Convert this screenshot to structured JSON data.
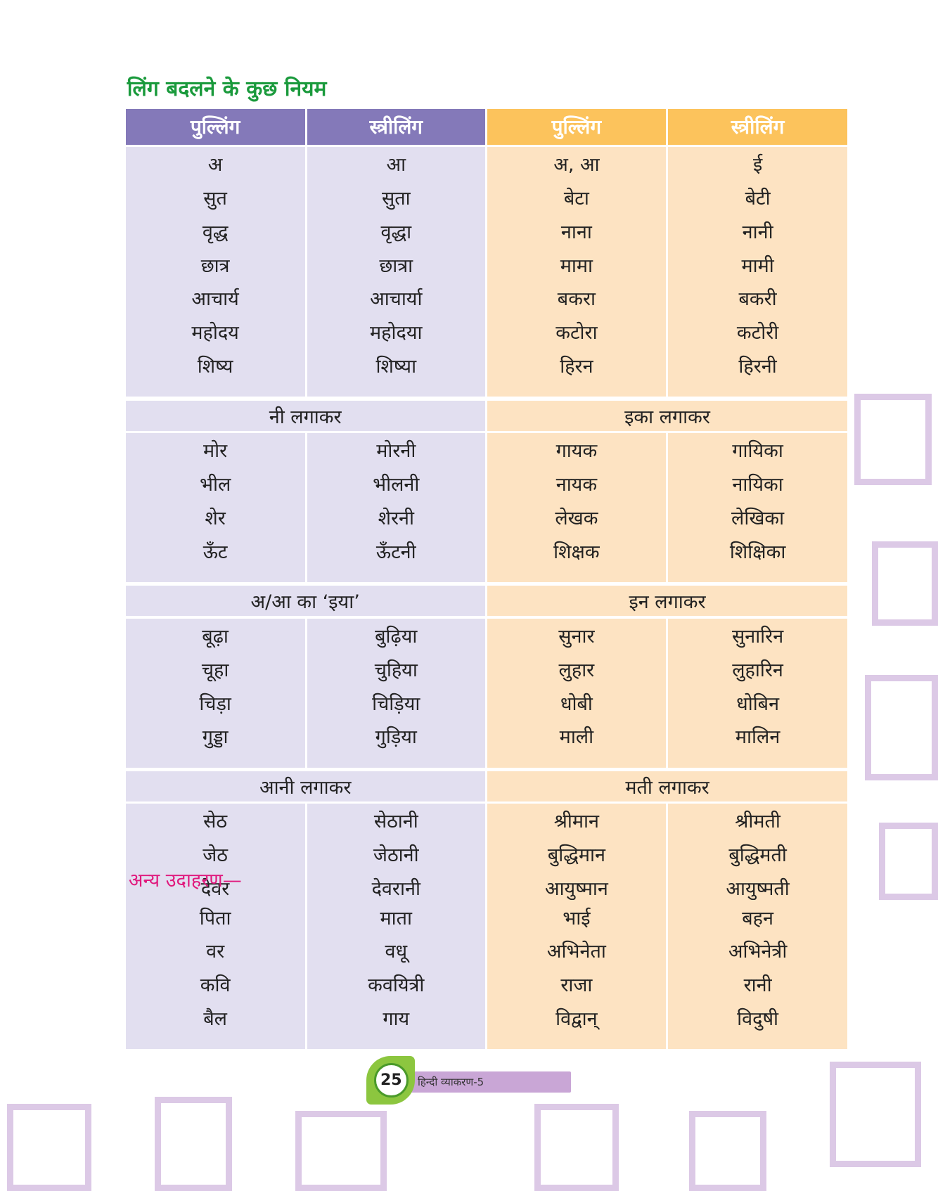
{
  "title": "लिंग बदलने के कुछ नियम",
  "headers": [
    "पुल्लिंग",
    "स्त्रीलिंग",
    "पुल्लिंग",
    "स्त्रीलिंग"
  ],
  "sections": [
    {
      "rows": [
        [
          "अ",
          "आ",
          "अ, आ",
          "ई"
        ],
        [
          "सुत",
          "सुता",
          "बेटा",
          "बेटी"
        ],
        [
          "वृद्ध",
          "वृद्धा",
          "नाना",
          "नानी"
        ],
        [
          "छात्र",
          "छात्रा",
          "मामा",
          "मामी"
        ],
        [
          "आचार्य",
          "आचार्या",
          "बकरा",
          "बकरी"
        ],
        [
          "महोदय",
          "महोदया",
          "कटोरा",
          "कटोरी"
        ],
        [
          "शिष्य",
          "शिष्या",
          "हिरन",
          "हिरनी"
        ]
      ]
    },
    {
      "left_title": "नी लगाकर",
      "right_title": "इका लगाकर",
      "rows": [
        [
          "मोर",
          "मोरनी",
          "गायक",
          "गायिका"
        ],
        [
          "भील",
          "भीलनी",
          "नायक",
          "नायिका"
        ],
        [
          "शेर",
          "शेरनी",
          "लेखक",
          "लेखिका"
        ],
        [
          "ऊँट",
          "ऊँटनी",
          "शिक्षक",
          "शिक्षिका"
        ]
      ]
    },
    {
      "left_title": "अ/आ का ‘इया’",
      "right_title": "इन लगाकर",
      "rows": [
        [
          "बूढ़ा",
          "बुढ़िया",
          "सुनार",
          "सुनारिन"
        ],
        [
          "चूहा",
          "चुहिया",
          "लुहार",
          "लुहारिन"
        ],
        [
          "चिड़ा",
          "चिड़िया",
          "धोबी",
          "धोबिन"
        ],
        [
          "गुड्डा",
          "गुड़िया",
          "माली",
          "मालिन"
        ]
      ]
    },
    {
      "left_title": "आनी लगाकर",
      "right_title": "मती लगाकर",
      "rows": [
        [
          "सेठ",
          "सेठानी",
          "श्रीमान",
          "श्रीमती"
        ],
        [
          "जेठ",
          "जेठानी",
          "बुद्धिमान",
          "बुद्धिमती"
        ],
        [
          "देवर",
          "देवरानी",
          "आयुष्मान",
          "आयुष्मती"
        ]
      ]
    }
  ],
  "other_examples": {
    "label": "अन्य उदाहरण—",
    "rows": [
      [
        "पिता",
        "माता",
        "भाई",
        "बहन"
      ],
      [
        "वर",
        "वधू",
        "अभिनेता",
        "अभिनेत्री"
      ],
      [
        "कवि",
        "कवयित्री",
        "राजा",
        "रानी"
      ],
      [
        "बैल",
        "गाय",
        "विद्वान्",
        "विदुषी"
      ]
    ]
  },
  "footer": {
    "page_number": "25",
    "book": "हिन्दी व्याकरण-5"
  }
}
